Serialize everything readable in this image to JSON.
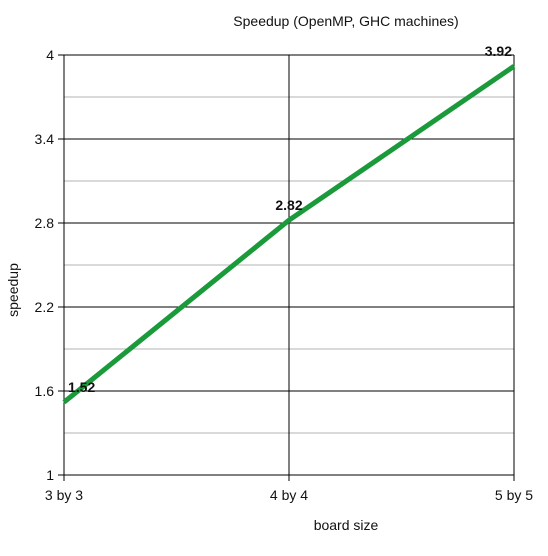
{
  "chart_data": {
    "type": "line",
    "title": "Speedup (OpenMP, GHC machines)",
    "xlabel": "board size",
    "ylabel": "speedup",
    "categories": [
      "3 by 3",
      "4 by 4",
      "5 by 5"
    ],
    "series": [
      {
        "values": [
          1.52,
          2.82,
          3.92
        ],
        "color": "#1a9a3a"
      }
    ],
    "data_labels": [
      "1.52",
      "2.82",
      "3.92"
    ],
    "ylim": [
      1,
      4
    ],
    "yticks": [
      1,
      1.6,
      2.2,
      2.8,
      3.4,
      4
    ],
    "ytick_labels": [
      "1",
      "1.6",
      "2.2",
      "2.8",
      "3.4",
      "4"
    ],
    "grid": {
      "major_color": "#000000",
      "minor_color": "#b3b3b3",
      "minor_values": [
        1.3,
        1.9,
        2.5,
        3.1,
        3.7
      ]
    },
    "legend": "none"
  }
}
